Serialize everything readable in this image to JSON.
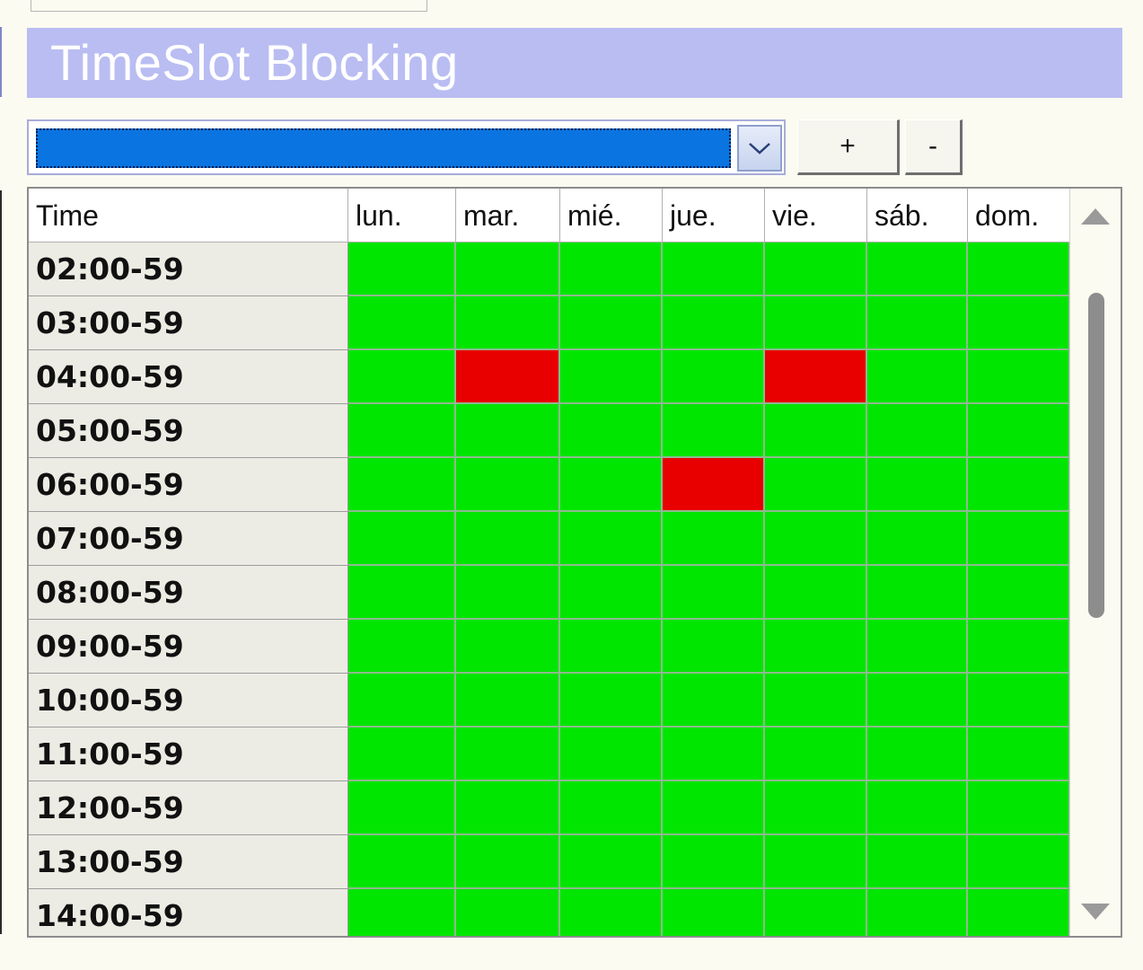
{
  "window": {
    "title": "TimeSlot Blocking"
  },
  "toolbar": {
    "selector_value": "",
    "add_label": "+",
    "remove_label": "-"
  },
  "colors": {
    "open": "#00e600",
    "blocked": "#e80000",
    "title_bar": "#b9bdf2",
    "selection": "#0a74e0"
  },
  "grid": {
    "columns": [
      "Time",
      "lun.",
      "mar.",
      "mié.",
      "jue.",
      "vie.",
      "sáb.",
      "dom."
    ],
    "rows": [
      {
        "time": "02:00-59",
        "slots": [
          "open",
          "open",
          "open",
          "open",
          "open",
          "open",
          "open"
        ]
      },
      {
        "time": "03:00-59",
        "slots": [
          "open",
          "open",
          "open",
          "open",
          "open",
          "open",
          "open"
        ]
      },
      {
        "time": "04:00-59",
        "slots": [
          "open",
          "blocked",
          "open",
          "open",
          "blocked",
          "open",
          "open"
        ]
      },
      {
        "time": "05:00-59",
        "slots": [
          "open",
          "open",
          "open",
          "open",
          "open",
          "open",
          "open"
        ]
      },
      {
        "time": "06:00-59",
        "slots": [
          "open",
          "open",
          "open",
          "blocked",
          "open",
          "open",
          "open"
        ]
      },
      {
        "time": "07:00-59",
        "slots": [
          "open",
          "open",
          "open",
          "open",
          "open",
          "open",
          "open"
        ]
      },
      {
        "time": "08:00-59",
        "slots": [
          "open",
          "open",
          "open",
          "open",
          "open",
          "open",
          "open"
        ]
      },
      {
        "time": "09:00-59",
        "slots": [
          "open",
          "open",
          "open",
          "open",
          "open",
          "open",
          "open"
        ]
      },
      {
        "time": "10:00-59",
        "slots": [
          "open",
          "open",
          "open",
          "open",
          "open",
          "open",
          "open"
        ]
      },
      {
        "time": "11:00-59",
        "slots": [
          "open",
          "open",
          "open",
          "open",
          "open",
          "open",
          "open"
        ]
      },
      {
        "time": "12:00-59",
        "slots": [
          "open",
          "open",
          "open",
          "open",
          "open",
          "open",
          "open"
        ]
      },
      {
        "time": "13:00-59",
        "slots": [
          "open",
          "open",
          "open",
          "open",
          "open",
          "open",
          "open"
        ]
      },
      {
        "time": "14:00-59",
        "slots": [
          "open",
          "open",
          "open",
          "open",
          "open",
          "open",
          "open"
        ]
      }
    ]
  }
}
